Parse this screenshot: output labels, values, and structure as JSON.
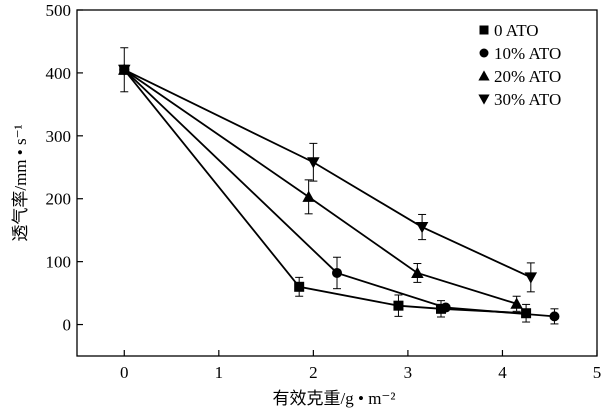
{
  "chart_data": {
    "type": "scatter",
    "title": "",
    "xlabel": "有效克重/g • m⁻²",
    "ylabel": "透气率/mm • s⁻¹",
    "xlim": [
      -0.5,
      5
    ],
    "ylim": [
      -50,
      500
    ],
    "xticks": [
      0,
      1,
      2,
      3,
      4,
      5
    ],
    "yticks": [
      0,
      100,
      200,
      300,
      400,
      500
    ],
    "grid": false,
    "legend_position": "top-right",
    "series": [
      {
        "name": "0 ATO",
        "marker": "square",
        "x": [
          0,
          1.85,
          2.9,
          3.35,
          4.25
        ],
        "y": [
          405,
          60,
          30,
          25,
          18
        ],
        "err": [
          0,
          15,
          17,
          13,
          14
        ]
      },
      {
        "name": "10% ATO",
        "marker": "circle",
        "x": [
          0,
          2.25,
          3.4,
          4.55
        ],
        "y": [
          405,
          82,
          27,
          13
        ],
        "err": [
          0,
          25,
          0,
          12
        ]
      },
      {
        "name": "20% ATO",
        "marker": "triangle-up",
        "x": [
          0,
          1.95,
          3.1,
          4.15
        ],
        "y": [
          405,
          203,
          82,
          33
        ],
        "err": [
          0,
          27,
          15,
          12
        ]
      },
      {
        "name": "30% ATO",
        "marker": "triangle-down",
        "x": [
          0,
          2.0,
          3.15,
          4.3
        ],
        "y": [
          405,
          258,
          155,
          75
        ],
        "err": [
          35,
          30,
          20,
          23
        ]
      }
    ]
  }
}
